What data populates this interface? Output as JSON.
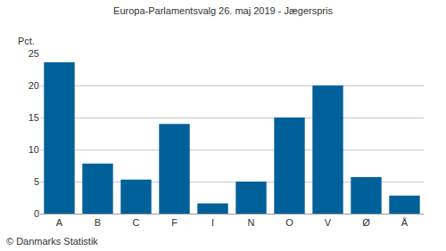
{
  "chart_data": {
    "type": "bar",
    "title": "Europa-Parlamentsvalg 26. maj 2019 - Jægerspris",
    "ylabel": "Pct.",
    "source": "© Danmarks Statistik",
    "categories": [
      "A",
      "B",
      "C",
      "F",
      "I",
      "N",
      "O",
      "V",
      "Ø",
      "Å"
    ],
    "values": [
      23.6,
      7.8,
      5.3,
      14.0,
      1.6,
      5.0,
      15.0,
      20.0,
      5.7,
      2.8
    ],
    "color": "#00609a",
    "ylim": [
      0,
      25
    ],
    "yticks": [
      0,
      5,
      10,
      15,
      20,
      25
    ],
    "grid": true
  }
}
